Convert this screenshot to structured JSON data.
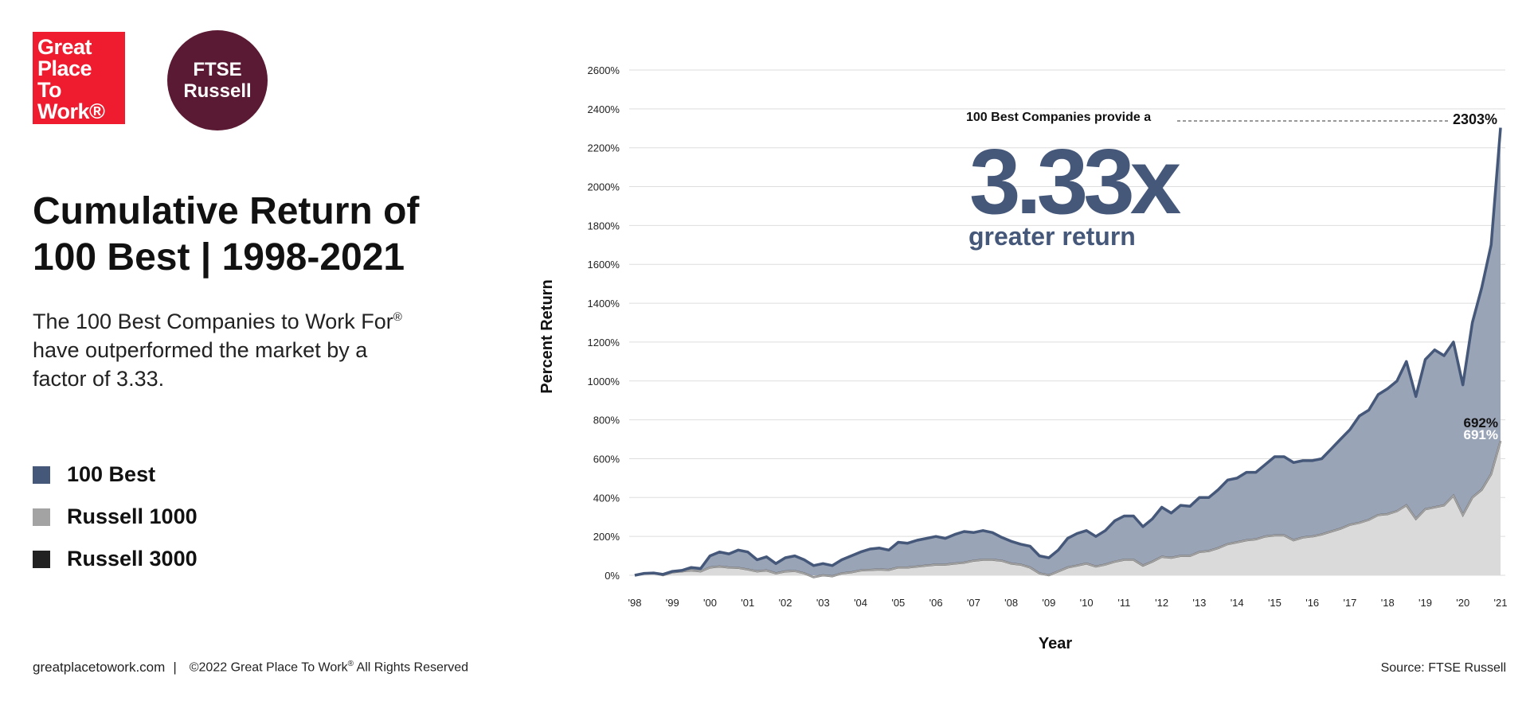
{
  "logos": {
    "gptw": [
      "Great",
      "Place",
      "To",
      "Work®"
    ],
    "ftse": [
      "FTSE",
      "Russell"
    ]
  },
  "title_lines": [
    "Cumulative Return of",
    "100 Best | 1998-2021"
  ],
  "subtitle_lines": [
    "The 100 Best Companies to Work For",
    "have outperformed the market by a",
    "factor of 3.33."
  ],
  "subtitle_mark": "®",
  "legend": [
    {
      "label": "100 Best",
      "color": "#45587a"
    },
    {
      "label": "Russell 1000",
      "color": "#a3a3a3"
    },
    {
      "label": "Russell 3000",
      "color": "#222222"
    }
  ],
  "footer": {
    "site": "greatplacetowork.com",
    "separator": "|",
    "copyright": "©2022 Great Place To Work",
    "copyright_mark": "®",
    "copyright_tail": " All Rights Reserved",
    "source": "Source: FTSE Russell"
  },
  "colors": {
    "best_area": "#9aa4b7",
    "best_line": "#45587a",
    "russell_area": "#dadada",
    "russell1000_line": "#a3a3a3",
    "russell3000_line": "#4a4a4a",
    "grid": "#dedede"
  },
  "chart_data": {
    "type": "area",
    "xlabel": "Year",
    "ylabel": "Percent Return",
    "ylim": [
      0,
      2600
    ],
    "yticks": [
      0,
      200,
      400,
      600,
      800,
      1000,
      1200,
      1400,
      1600,
      1800,
      2000,
      2200,
      2400,
      2600
    ],
    "ytick_labels": [
      "0%",
      "200%",
      "400%",
      "600%",
      "800%",
      "1000%",
      "1200%",
      "1400%",
      "1600%",
      "1800%",
      "2000%",
      "2200%",
      "2400%",
      "2600%"
    ],
    "xlim": [
      1998,
      2021
    ],
    "xticks": [
      1998,
      1999,
      2000,
      2001,
      2002,
      2003,
      2004,
      2005,
      2006,
      2007,
      2008,
      2009,
      2010,
      2011,
      2012,
      2013,
      2014,
      2015,
      2016,
      2017,
      2018,
      2019,
      2020,
      2021
    ],
    "xtick_labels": [
      "'98",
      "'99",
      "'00",
      "'01",
      "'02",
      "'03",
      "'04",
      "'05",
      "'06",
      "'07",
      "'08",
      "'09",
      "'10",
      "'11",
      "'12",
      "'13",
      "'14",
      "'15",
      "'16",
      "'17",
      "'18",
      "'19",
      "'20",
      "'21"
    ],
    "grid": true,
    "legend_position": "left",
    "series": [
      {
        "name": "100 Best",
        "x": [
          1998,
          1998.25,
          1998.5,
          1998.75,
          1999,
          1999.25,
          1999.5,
          1999.75,
          2000,
          2000.25,
          2000.5,
          2000.75,
          2001,
          2001.25,
          2001.5,
          2001.75,
          2002,
          2002.25,
          2002.5,
          2002.75,
          2003,
          2003.25,
          2003.5,
          2003.75,
          2004,
          2004.25,
          2004.5,
          2004.75,
          2005,
          2005.25,
          2005.5,
          2005.75,
          2006,
          2006.25,
          2006.5,
          2006.75,
          2007,
          2007.25,
          2007.5,
          2007.75,
          2008,
          2008.25,
          2008.5,
          2008.75,
          2009,
          2009.25,
          2009.5,
          2009.75,
          2010,
          2010.25,
          2010.5,
          2010.75,
          2011,
          2011.25,
          2011.5,
          2011.75,
          2012,
          2012.25,
          2012.5,
          2012.75,
          2013,
          2013.25,
          2013.5,
          2013.75,
          2014,
          2014.25,
          2014.5,
          2014.75,
          2015,
          2015.25,
          2015.5,
          2015.75,
          2016,
          2016.25,
          2016.5,
          2016.75,
          2017,
          2017.25,
          2017.5,
          2017.75,
          2018,
          2018.25,
          2018.5,
          2018.75,
          2019,
          2019.25,
          2019.5,
          2019.75,
          2020,
          2020.25,
          2020.5,
          2020.75,
          2021
        ],
        "values": [
          0,
          10,
          12,
          5,
          20,
          25,
          40,
          35,
          100,
          120,
          110,
          130,
          120,
          80,
          95,
          60,
          90,
          100,
          80,
          50,
          60,
          50,
          80,
          100,
          120,
          135,
          140,
          130,
          170,
          165,
          180,
          190,
          200,
          190,
          210,
          225,
          220,
          230,
          220,
          195,
          175,
          160,
          150,
          100,
          90,
          130,
          190,
          215,
          230,
          200,
          230,
          280,
          305,
          305,
          250,
          290,
          350,
          320,
          360,
          355,
          400,
          400,
          440,
          490,
          500,
          530,
          530,
          570,
          610,
          610,
          580,
          590,
          590,
          600,
          650,
          700,
          750,
          820,
          850,
          930,
          960,
          1000,
          1100,
          920,
          1110,
          1160,
          1130,
          1200,
          980,
          1300,
          1480,
          1700,
          2303
        ]
      },
      {
        "name": "Russell 1000",
        "x": [
          1998,
          1998.25,
          1998.5,
          1998.75,
          1999,
          1999.25,
          1999.5,
          1999.75,
          2000,
          2000.25,
          2000.5,
          2000.75,
          2001,
          2001.25,
          2001.5,
          2001.75,
          2002,
          2002.25,
          2002.5,
          2002.75,
          2003,
          2003.25,
          2003.5,
          2003.75,
          2004,
          2004.25,
          2004.5,
          2004.75,
          2005,
          2005.25,
          2005.5,
          2005.75,
          2006,
          2006.25,
          2006.5,
          2006.75,
          2007,
          2007.25,
          2007.5,
          2007.75,
          2008,
          2008.25,
          2008.5,
          2008.75,
          2009,
          2009.25,
          2009.5,
          2009.75,
          2010,
          2010.25,
          2010.5,
          2010.75,
          2011,
          2011.25,
          2011.5,
          2011.75,
          2012,
          2012.25,
          2012.5,
          2012.75,
          2013,
          2013.25,
          2013.5,
          2013.75,
          2014,
          2014.25,
          2014.5,
          2014.75,
          2015,
          2015.25,
          2015.5,
          2015.75,
          2016,
          2016.25,
          2016.5,
          2016.75,
          2017,
          2017.25,
          2017.5,
          2017.75,
          2018,
          2018.25,
          2018.5,
          2018.75,
          2019,
          2019.25,
          2019.5,
          2019.75,
          2020,
          2020.25,
          2020.5,
          2020.75,
          2021
        ],
        "values": [
          0,
          10,
          12,
          0,
          15,
          20,
          25,
          20,
          40,
          45,
          40,
          38,
          30,
          20,
          25,
          10,
          20,
          22,
          10,
          -10,
          0,
          -5,
          10,
          15,
          25,
          28,
          30,
          28,
          40,
          40,
          45,
          50,
          55,
          55,
          60,
          65,
          75,
          80,
          80,
          75,
          60,
          55,
          40,
          10,
          0,
          20,
          40,
          50,
          60,
          45,
          55,
          70,
          80,
          80,
          50,
          70,
          95,
          90,
          100,
          100,
          120,
          125,
          140,
          160,
          170,
          180,
          185,
          200,
          205,
          205,
          180,
          195,
          200,
          210,
          225,
          240,
          260,
          270,
          285,
          310,
          315,
          330,
          360,
          290,
          340,
          350,
          360,
          410,
          310,
          400,
          440,
          520,
          692
        ]
      },
      {
        "name": "Russell 3000",
        "x": [
          1998,
          1998.25,
          1998.5,
          1998.75,
          1999,
          1999.25,
          1999.5,
          1999.75,
          2000,
          2000.25,
          2000.5,
          2000.75,
          2001,
          2001.25,
          2001.5,
          2001.75,
          2002,
          2002.25,
          2002.5,
          2002.75,
          2003,
          2003.25,
          2003.5,
          2003.75,
          2004,
          2004.25,
          2004.5,
          2004.75,
          2005,
          2005.25,
          2005.5,
          2005.75,
          2006,
          2006.25,
          2006.5,
          2006.75,
          2007,
          2007.25,
          2007.5,
          2007.75,
          2008,
          2008.25,
          2008.5,
          2008.75,
          2009,
          2009.25,
          2009.5,
          2009.75,
          2010,
          2010.25,
          2010.5,
          2010.75,
          2011,
          2011.25,
          2011.5,
          2011.75,
          2012,
          2012.25,
          2012.5,
          2012.75,
          2013,
          2013.25,
          2013.5,
          2013.75,
          2014,
          2014.25,
          2014.5,
          2014.75,
          2015,
          2015.25,
          2015.5,
          2015.75,
          2016,
          2016.25,
          2016.5,
          2016.75,
          2017,
          2017.25,
          2017.5,
          2017.75,
          2018,
          2018.25,
          2018.5,
          2018.75,
          2019,
          2019.25,
          2019.5,
          2019.75,
          2020,
          2020.25,
          2020.5,
          2020.75,
          2021
        ],
        "values": [
          0,
          10,
          12,
          0,
          15,
          20,
          25,
          20,
          40,
          45,
          40,
          38,
          30,
          20,
          25,
          10,
          20,
          22,
          10,
          -10,
          0,
          -5,
          10,
          15,
          25,
          28,
          30,
          28,
          40,
          40,
          45,
          50,
          55,
          55,
          60,
          65,
          75,
          80,
          80,
          75,
          60,
          55,
          40,
          10,
          0,
          20,
          40,
          50,
          60,
          45,
          55,
          70,
          80,
          80,
          50,
          70,
          95,
          90,
          100,
          100,
          120,
          125,
          140,
          160,
          170,
          180,
          185,
          200,
          205,
          205,
          180,
          195,
          200,
          210,
          225,
          240,
          260,
          270,
          285,
          310,
          315,
          330,
          360,
          290,
          340,
          350,
          360,
          410,
          310,
          400,
          440,
          520,
          691
        ]
      }
    ],
    "annotations": {
      "callout_text": "100 Best Companies provide a",
      "headline": "3.33x",
      "subheadline": "greater return",
      "end_labels": [
        "2303%",
        "692%",
        "691%"
      ]
    }
  }
}
